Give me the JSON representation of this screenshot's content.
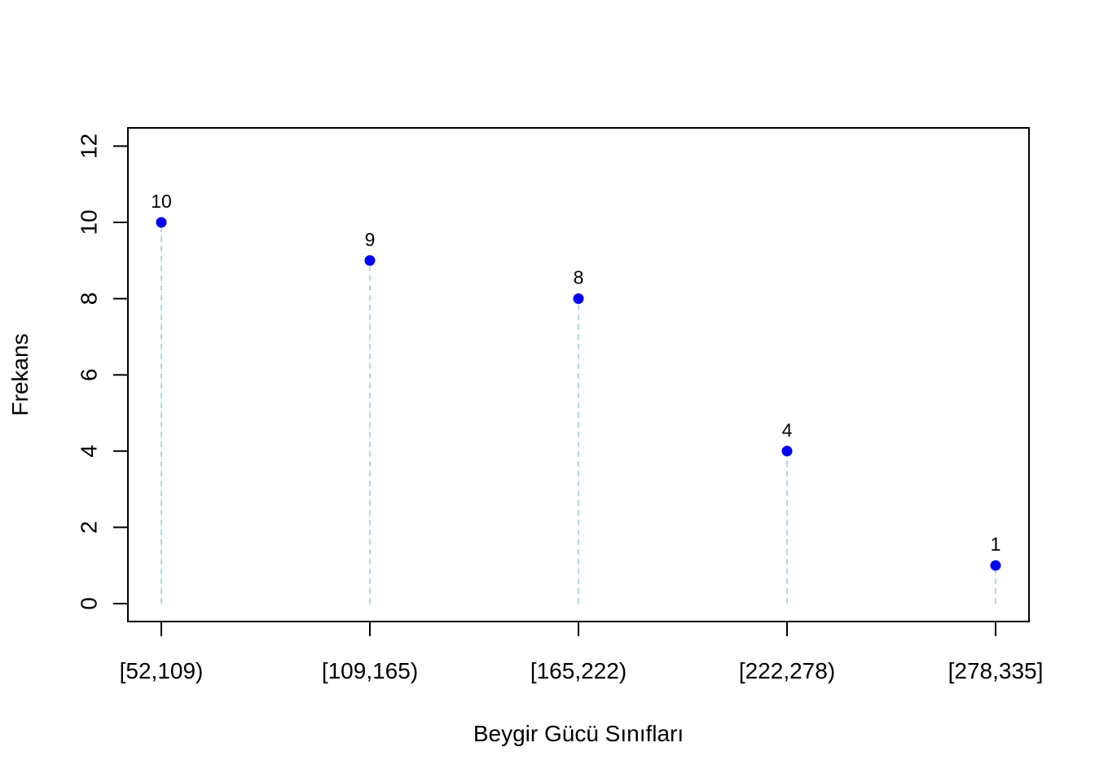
{
  "chart_data": {
    "type": "scatter",
    "title": "",
    "xlabel": "Beygir Gücü Sınıfları",
    "ylabel": "Frekans",
    "categories": [
      "[52,109)",
      "[109,165)",
      "[165,222)",
      "[222,278)",
      "[278,335]"
    ],
    "values": [
      10,
      9,
      8,
      4,
      1
    ],
    "data_labels": [
      "10",
      "9",
      "8",
      "4",
      "1"
    ],
    "ylim": [
      0,
      12
    ],
    "yticks": [
      "0",
      "2",
      "4",
      "6",
      "8",
      "10",
      "12"
    ],
    "grid": false,
    "legend": "none",
    "point_color": "#0000EE",
    "drop_line_color": "#ADD8E6",
    "drop_line_style": "dashed"
  }
}
